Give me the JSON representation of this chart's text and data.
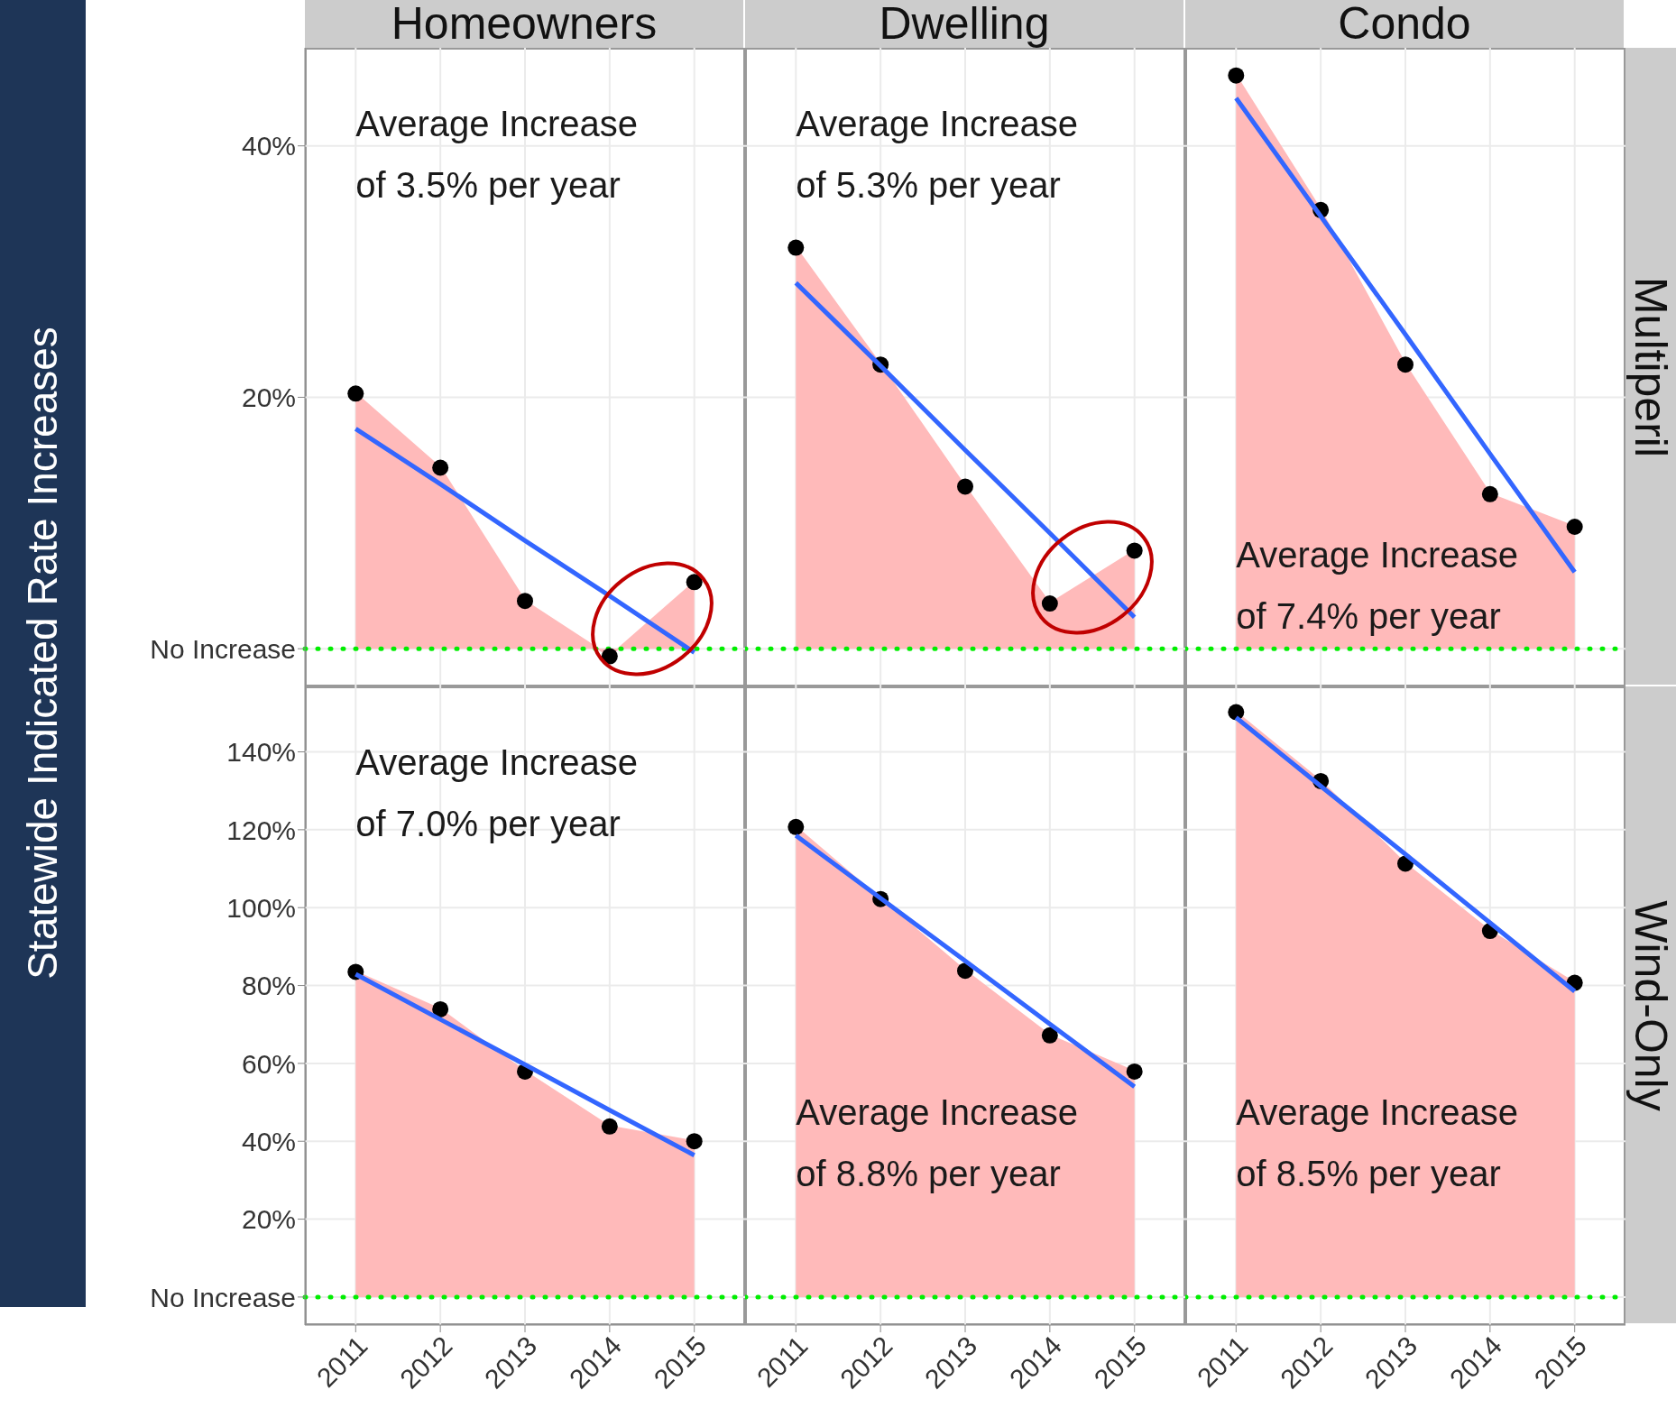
{
  "chart_data": [
    {
      "type": "area",
      "title": "Homeowners",
      "ylabel": "Statewide Indicated Rate Increases",
      "x": [
        2011,
        2012,
        2013,
        2014,
        2015
      ],
      "xlim": [
        2010.4,
        2015.6
      ],
      "xticks": [
        2011,
        2012,
        2013,
        2014,
        2015
      ],
      "ylim": [
        -3,
        47.8
      ],
      "yticks": [
        {
          "value": 0,
          "label": "No Increase"
        },
        {
          "value": 20,
          "label": "20%"
        },
        {
          "value": 40,
          "label": "40%"
        }
      ],
      "tick_labels": "y",
      "grid": true,
      "series": [
        {
          "type": "area",
          "color": "#ffbaba",
          "values": [
            20.3,
            14.4,
            3.8,
            -0.6,
            5.3
          ]
        },
        {
          "type": "scatter",
          "color": "#000000",
          "values": [
            20.3,
            14.4,
            3.8,
            -0.6,
            5.3
          ]
        },
        {
          "type": "line",
          "color": "#3366ff",
          "values": [
            17.5,
            13.1,
            8.6,
            4.2,
            -0.3
          ]
        }
      ],
      "ref_lines": [
        {
          "axis": "y",
          "value": 0,
          "color": "#00ee00",
          "line_style": "dotted"
        }
      ],
      "annotations": [
        "Average Increase of 3.5% per year"
      ]
    },
    {
      "type": "area",
      "title": "Dwelling",
      "x": [
        2011,
        2012,
        2013,
        2014,
        2015
      ],
      "xlim": [
        2010.4,
        2015.6
      ],
      "xticks": [
        2011,
        2012,
        2013,
        2014,
        2015
      ],
      "ylim": [
        -3,
        47.8
      ],
      "yticks": [
        0,
        20,
        40
      ],
      "tick_labels": false,
      "grid": true,
      "series": [
        {
          "type": "area",
          "color": "#ffbaba",
          "values": [
            31.9,
            22.6,
            12.9,
            3.6,
            7.8
          ]
        },
        {
          "type": "scatter",
          "color": "#000000",
          "values": [
            31.9,
            22.6,
            12.9,
            3.6,
            7.8
          ]
        },
        {
          "type": "line",
          "color": "#3366ff",
          "values": [
            29.1,
            22.5,
            15.8,
            9.2,
            2.5
          ]
        }
      ],
      "ref_lines": [
        {
          "axis": "y",
          "value": 0,
          "color": "#00ee00",
          "line_style": "dotted"
        }
      ],
      "annotations": [
        "Average Increase of 5.3% per year"
      ]
    },
    {
      "type": "area",
      "title": "Condo",
      "y2label": "Multiperil",
      "x": [
        2011,
        2012,
        2013,
        2014,
        2015
      ],
      "xlim": [
        2010.4,
        2015.6
      ],
      "xticks": [
        2011,
        2012,
        2013,
        2014,
        2015
      ],
      "ylim": [
        -3,
        47.8
      ],
      "yticks": [
        0,
        20,
        40
      ],
      "tick_labels": false,
      "grid": true,
      "series": [
        {
          "type": "area",
          "color": "#ffbaba",
          "values": [
            45.6,
            34.9,
            22.6,
            12.3,
            9.7
          ]
        },
        {
          "type": "scatter",
          "color": "#000000",
          "values": [
            45.6,
            34.9,
            22.6,
            12.3,
            9.7
          ]
        },
        {
          "type": "line",
          "color": "#3366ff",
          "values": [
            43.8,
            34.4,
            25,
            15.5,
            6.1
          ]
        }
      ],
      "ref_lines": [
        {
          "axis": "y",
          "value": 0,
          "color": "#00ee00",
          "line_style": "dotted"
        }
      ],
      "annotations": [
        "Average Increase of 7.4% per year"
      ]
    },
    {
      "type": "area",
      "x": [
        2011,
        2012,
        2013,
        2014,
        2015
      ],
      "xlim": [
        2010.4,
        2015.6
      ],
      "xticks": [
        2011,
        2012,
        2013,
        2014,
        2015
      ],
      "ylim": [
        -7.2,
        156.8
      ],
      "yticks": [
        {
          "value": 0,
          "label": "No Increase"
        },
        {
          "value": 20,
          "label": "20%"
        },
        {
          "value": 40,
          "label": "40%"
        },
        {
          "value": 60,
          "label": "60%"
        },
        {
          "value": 80,
          "label": "80%"
        },
        {
          "value": 100,
          "label": "100%"
        },
        {
          "value": 120,
          "label": "120%"
        },
        {
          "value": 140,
          "label": "140%"
        }
      ],
      "grid": true,
      "series": [
        {
          "type": "area",
          "color": "#ffbaba",
          "values": [
            83.5,
            73.9,
            57.9,
            43.8,
            40
          ]
        },
        {
          "type": "scatter",
          "color": "#000000",
          "values": [
            83.5,
            73.9,
            57.9,
            43.8,
            40
          ]
        },
        {
          "type": "line",
          "color": "#3366ff",
          "values": [
            82.9,
            71.3,
            59.7,
            48,
            36.4
          ]
        }
      ],
      "ref_lines": [
        {
          "axis": "y",
          "value": 0,
          "color": "#00ee00",
          "line_style": "dotted"
        }
      ],
      "annotations": [
        "Average Increase of 7.0% per year"
      ]
    },
    {
      "type": "area",
      "x": [
        2011,
        2012,
        2013,
        2014,
        2015
      ],
      "xlim": [
        2010.4,
        2015.6
      ],
      "xticks": [
        2011,
        2012,
        2013,
        2014,
        2015
      ],
      "ylim": [
        -7.2,
        156.8
      ],
      "yticks": [
        0,
        20,
        40,
        60,
        80,
        100,
        120,
        140
      ],
      "tick_labels": "x",
      "grid": true,
      "series": [
        {
          "type": "area",
          "color": "#ffbaba",
          "values": [
            120.7,
            102.2,
            83.8,
            67.2,
            57.9
          ]
        },
        {
          "type": "scatter",
          "color": "#000000",
          "values": [
            120.7,
            102.2,
            83.8,
            67.2,
            57.9
          ]
        },
        {
          "type": "line",
          "color": "#3366ff",
          "values": [
            118.5,
            102.4,
            86.3,
            70.1,
            54
          ]
        }
      ],
      "ref_lines": [
        {
          "axis": "y",
          "value": 0,
          "color": "#00ee00",
          "line_style": "dotted"
        }
      ],
      "annotations": [
        "Average Increase of 8.8% per year"
      ]
    },
    {
      "type": "area",
      "y2label": "Wind-Only",
      "x": [
        2011,
        2012,
        2013,
        2014,
        2015
      ],
      "xlim": [
        2010.4,
        2015.6
      ],
      "xticks": [
        2011,
        2012,
        2013,
        2014,
        2015
      ],
      "ylim": [
        -7.2,
        156.8
      ],
      "yticks": [
        0,
        20,
        40,
        60,
        80,
        100,
        120,
        140
      ],
      "tick_labels": "x",
      "grid": true,
      "series": [
        {
          "type": "area",
          "color": "#ffbaba",
          "values": [
            150.2,
            132.5,
            111.3,
            94,
            80.7
          ]
        },
        {
          "type": "scatter",
          "color": "#000000",
          "values": [
            150.2,
            132.5,
            111.3,
            94,
            80.7
          ]
        },
        {
          "type": "line",
          "color": "#3366ff",
          "values": [
            148.8,
            131.2,
            113.7,
            96.1,
            78.5
          ]
        }
      ],
      "ref_lines": [
        {
          "axis": "y",
          "value": 0,
          "color": "#00ee00",
          "line_style": "dotted"
        }
      ],
      "annotations": [
        "Average Increase of 8.5% per year"
      ]
    }
  ]
}
